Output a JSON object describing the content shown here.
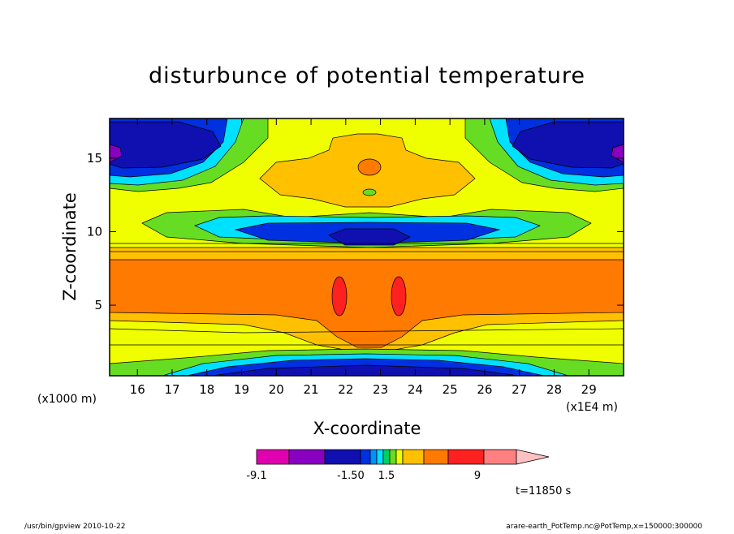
{
  "chart_data": {
    "type": "heatmap",
    "title": "disturbunce of potential temperature",
    "xlabel": "X-coordinate",
    "ylabel": "Z-coordinate",
    "x_unit": "(x1E4 m)",
    "y_unit": "(x1000 m)",
    "xlim": [
      15.2,
      30
    ],
    "ylim": [
      0.2,
      17.7
    ],
    "x_ticks": [
      16,
      17,
      18,
      19,
      20,
      21,
      22,
      23,
      24,
      25,
      26,
      27,
      28,
      29
    ],
    "y_ticks": [
      5,
      10,
      15
    ],
    "colorbar": {
      "colors": [
        "#e000b0",
        "#8800c0",
        "#1010b0",
        "#0030e0",
        "#0090ff",
        "#00e0ff",
        "#00d060",
        "#66dd22",
        "#f0ff00",
        "#ffc000",
        "#ff7a00",
        "#ff2020",
        "#ff8080",
        "#ffc0c0"
      ],
      "labels": [
        "-9.1",
        "-1.50",
        "1.5",
        "9"
      ]
    },
    "time_label": "t=11850 s"
  },
  "footer": {
    "left": "/usr/bin/gpview   2010-10-22",
    "right": "arare-earth_PotTemp.nc@PotTemp,x=150000:300000"
  }
}
